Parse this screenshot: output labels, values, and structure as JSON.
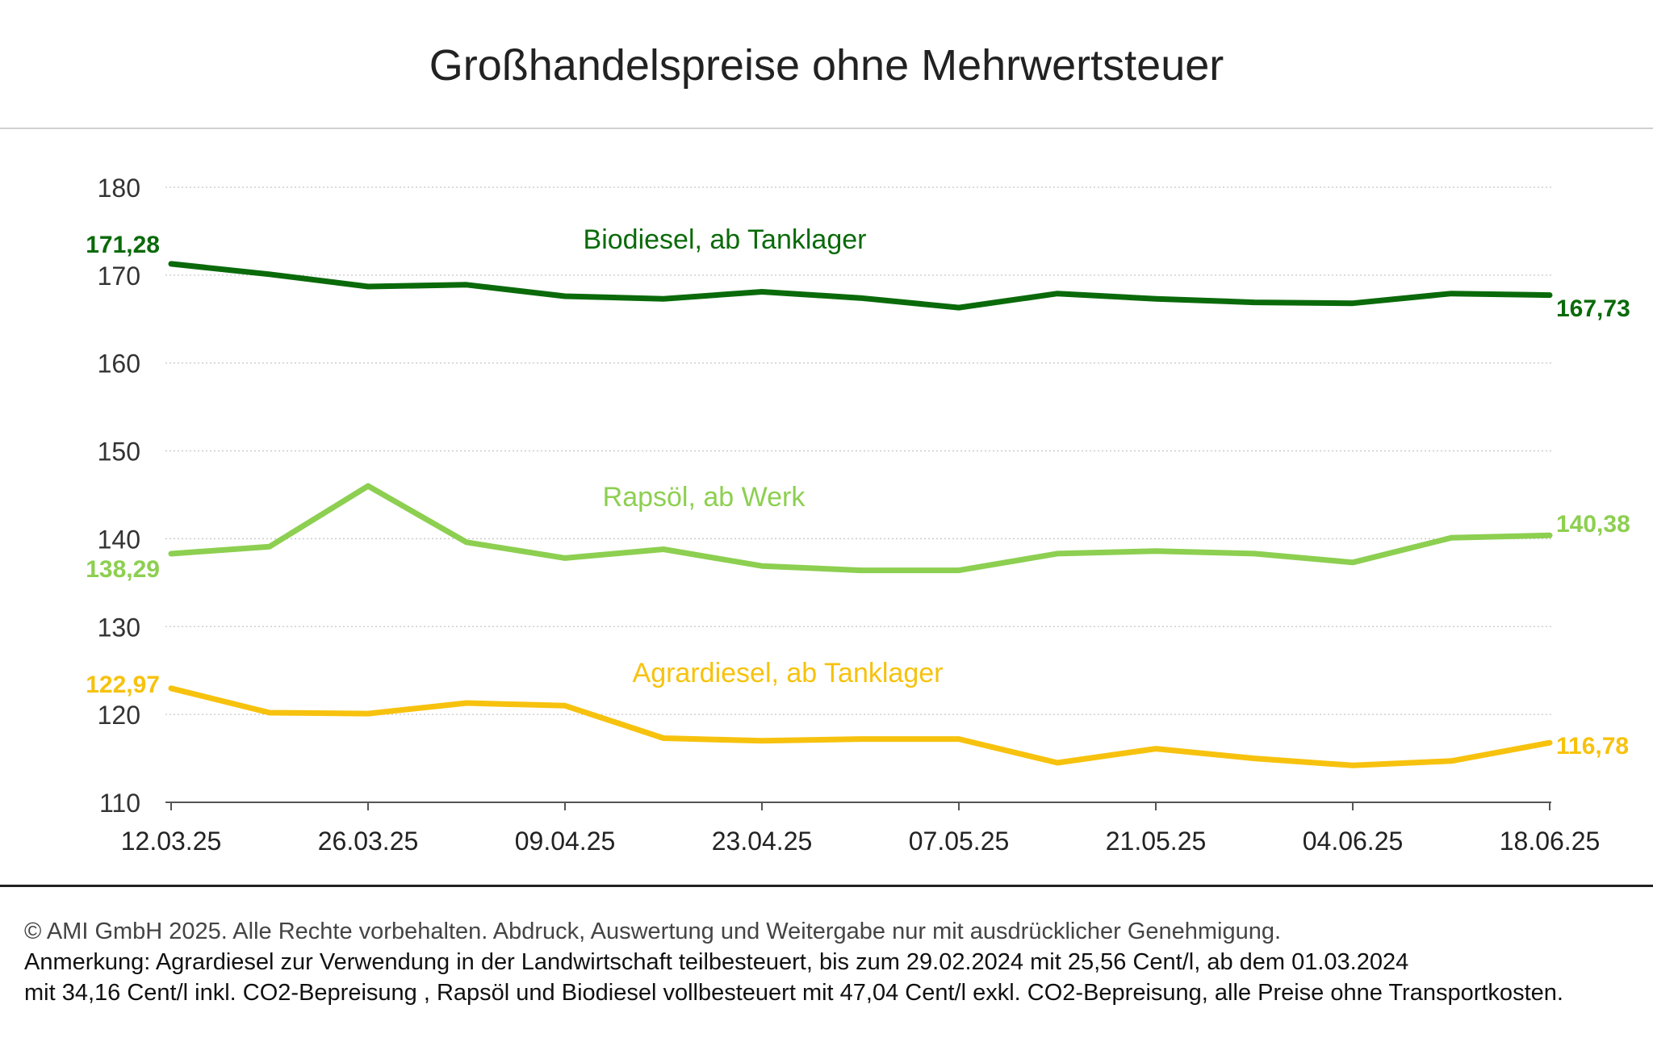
{
  "title": "Großhandelspreise ohne Mehrwertsteuer",
  "footer": {
    "copyright": "© AMI GmbH 2025.  Alle Rechte vorbehalten.  Abdruck, Auswertung und Weitergabe nur mit ausdrücklicher Genehmigung.",
    "note_line1": "Anmerkung: Agrardiesel zur Verwendung in der Landwirtschaft teilbesteuert, bis zum 29.02.2024 mit 25,56 Cent/l, ab dem 01.03.2024",
    "note_line2": "mit 34,16 Cent/l inkl. CO2-Bepreisung , Rapsöl und Biodiesel vollbesteuert mit 47,04 Cent/l exkl. CO2-Bepreisung, alle Preise ohne Transportkosten."
  },
  "chart_data": {
    "type": "line",
    "x_tick_labels": [
      "12.03.25",
      "26.03.25",
      "09.04.25",
      "23.04.25",
      "07.05.25",
      "21.05.25",
      "04.06.25",
      "18.06.25"
    ],
    "y_ticks": [
      110,
      120,
      130,
      140,
      150,
      160,
      170,
      180
    ],
    "ylim": [
      110,
      180
    ],
    "grid": "horizontal dotted",
    "series": [
      {
        "name": "Biodiesel, ab Tanklager",
        "color": "#0a6a0a",
        "start_label": "171,28",
        "end_label": "167,73",
        "values": [
          171.28,
          170.1,
          168.7,
          168.9,
          167.6,
          167.3,
          168.1,
          167.4,
          166.3,
          167.9,
          167.3,
          166.9,
          166.8,
          167.9,
          167.73
        ]
      },
      {
        "name": "Rapsöl, ab Werk",
        "color": "#8dcf50",
        "start_label": "138,29",
        "end_label": "140,38",
        "values": [
          138.29,
          139.1,
          146.0,
          139.6,
          137.8,
          138.8,
          136.9,
          136.4,
          136.4,
          138.3,
          138.6,
          138.3,
          137.3,
          140.1,
          140.38
        ]
      },
      {
        "name": "Agrardiesel, ab Tanklager",
        "color": "#f7c20e",
        "start_label": "122,97",
        "end_label": "116,78",
        "values": [
          122.97,
          120.2,
          120.1,
          121.3,
          121.0,
          117.3,
          117.0,
          117.2,
          117.2,
          114.5,
          116.1,
          115.0,
          114.2,
          114.7,
          116.78
        ]
      }
    ]
  }
}
